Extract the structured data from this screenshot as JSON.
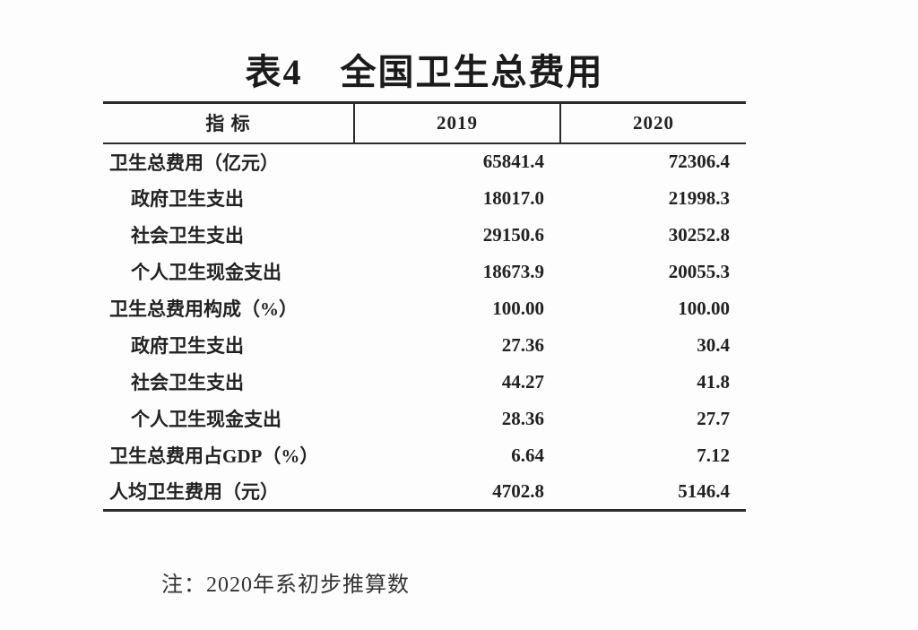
{
  "page": {
    "title": "表4　全国卫生总费用",
    "note": "注：2020年系初步推算数"
  },
  "table": {
    "columns": [
      "指 标",
      "2019",
      "2020"
    ],
    "rows": [
      {
        "label": "卫生总费用（亿元）",
        "y2019": "65841.4",
        "y2020": "72306.4"
      },
      {
        "label": "政府卫生支出",
        "y2019": "18017.0",
        "y2020": "21998.3"
      },
      {
        "label": "社会卫生支出",
        "y2019": "29150.6",
        "y2020": "30252.8"
      },
      {
        "label": "个人卫生现金支出",
        "y2019": "18673.9",
        "y2020": "20055.3"
      },
      {
        "label": "卫生总费用构成（%）",
        "y2019": "100.00",
        "y2020": "100.00"
      },
      {
        "label": "政府卫生支出",
        "y2019": "27.36",
        "y2020": "30.4"
      },
      {
        "label": "社会卫生支出",
        "y2019": "44.27",
        "y2020": "41.8"
      },
      {
        "label": "个人卫生现金支出",
        "y2019": "28.36",
        "y2020": "27.7"
      },
      {
        "label": "卫生总费用占GDP（%）",
        "y2019": "6.64",
        "y2020": "7.12"
      },
      {
        "label": "人均卫生费用（元）",
        "y2019": "4702.8",
        "y2020": "5146.4"
      }
    ]
  },
  "colors": {
    "text": "#1c1c1c",
    "rule": "#2b2b2b",
    "background": "#fdfdfd"
  }
}
